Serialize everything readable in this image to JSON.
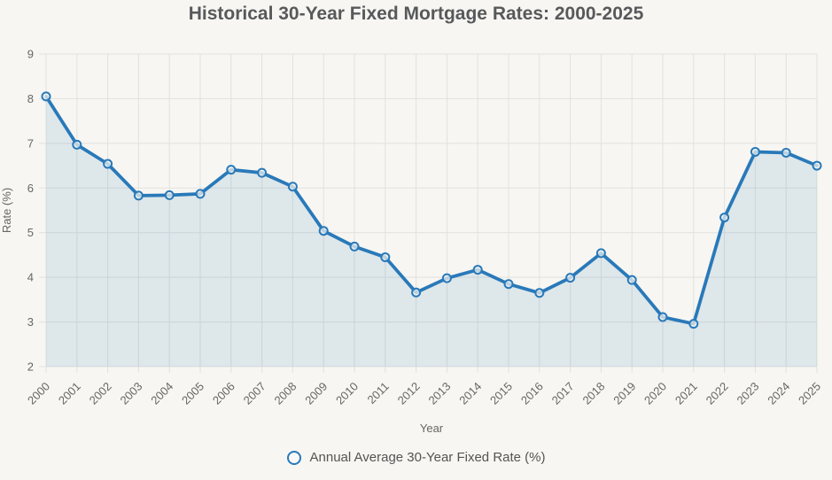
{
  "page": {
    "background": "#f7f6f2"
  },
  "chart_data": {
    "type": "line",
    "title": "Historical 30-Year Fixed Mortgage Rates: 2000-2025",
    "xlabel": "Year",
    "ylabel": "Rate (%)",
    "legend_position": "bottom",
    "legend": [
      {
        "label": "Annual Average 30-Year Fixed Rate (%)",
        "marker": "open-circle"
      }
    ],
    "categories": [
      "2000",
      "2001",
      "2002",
      "2003",
      "2004",
      "2005",
      "2006",
      "2007",
      "2008",
      "2009",
      "2010",
      "2011",
      "2012",
      "2013",
      "2014",
      "2015",
      "2016",
      "2017",
      "2018",
      "2019",
      "2020",
      "2021",
      "2022",
      "2023",
      "2024",
      "2025"
    ],
    "series": [
      {
        "name": "Annual Average 30-Year Fixed Rate (%)",
        "values": [
          8.05,
          6.97,
          6.54,
          5.83,
          5.84,
          5.87,
          6.41,
          6.34,
          6.03,
          5.04,
          4.69,
          4.45,
          3.66,
          3.98,
          4.17,
          3.85,
          3.65,
          3.99,
          4.54,
          3.94,
          3.11,
          2.96,
          5.34,
          6.81,
          6.79,
          6.5
        ]
      }
    ],
    "ylim": [
      2,
      9
    ],
    "yticks": [
      2,
      3,
      4,
      5,
      6,
      7,
      8,
      9
    ],
    "grid": true,
    "area_fill": true,
    "colors": {
      "line": "#2979b9",
      "area": "rgba(41,121,185,0.12)",
      "grid": "#e2e1de",
      "tick_text": "#666666",
      "axis_title_text": "#666666",
      "title_text": "#58595b",
      "marker_fill": "rgba(247,246,242,0.7)"
    }
  }
}
